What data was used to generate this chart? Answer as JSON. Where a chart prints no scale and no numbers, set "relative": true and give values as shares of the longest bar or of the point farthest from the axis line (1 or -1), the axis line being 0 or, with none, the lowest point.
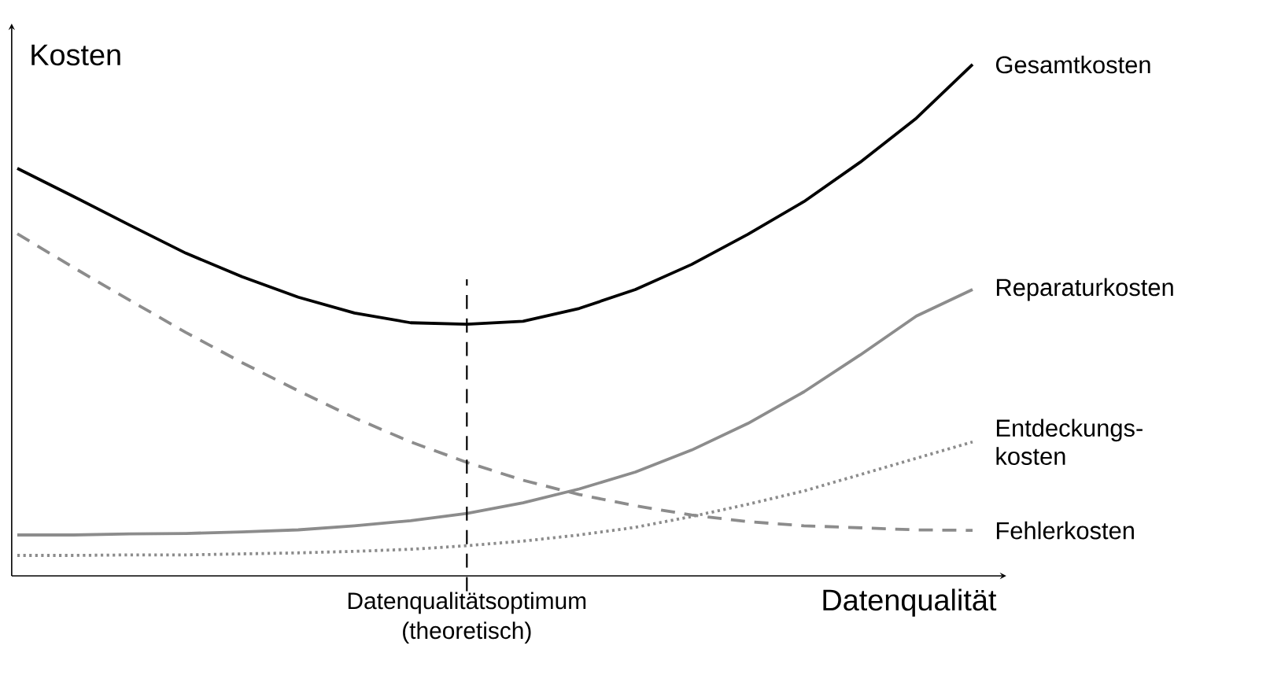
{
  "chart_data": {
    "type": "line",
    "relative": true,
    "xlabel": "Datenqualität",
    "ylabel": "Kosten",
    "categories": [
      null,
      null,
      null,
      null,
      null,
      null,
      null,
      null,
      null,
      null,
      null,
      null,
      null,
      null,
      null,
      null,
      null,
      null
    ],
    "series": [
      {
        "name": "Gesamtkosten",
        "color": "#000000",
        "line_style": "solid",
        "values": [
          0.797,
          0.742,
          0.686,
          0.631,
          0.585,
          0.545,
          0.514,
          0.495,
          0.492,
          0.498,
          0.523,
          0.56,
          0.609,
          0.668,
          0.732,
          0.809,
          0.895,
          1.0
        ]
      },
      {
        "name": "Reparaturkosten",
        "color": "#8c8c8c",
        "line_style": "solid",
        "values": [
          0.08,
          0.08,
          0.082,
          0.083,
          0.086,
          0.09,
          0.098,
          0.108,
          0.122,
          0.143,
          0.17,
          0.203,
          0.246,
          0.298,
          0.36,
          0.432,
          0.508,
          0.56
        ]
      },
      {
        "name": "Entdeckungs-kosten",
        "color": "#8c8c8c",
        "line_style": "dotted",
        "values": [
          0.04,
          0.04,
          0.041,
          0.041,
          0.043,
          0.045,
          0.048,
          0.052,
          0.059,
          0.068,
          0.08,
          0.095,
          0.116,
          0.14,
          0.166,
          0.198,
          0.23,
          0.262
        ]
      },
      {
        "name": "Fehlerkosten",
        "color": "#8c8c8c",
        "line_style": "dashed",
        "values": [
          0.669,
          0.603,
          0.539,
          0.476,
          0.417,
          0.362,
          0.309,
          0.262,
          0.222,
          0.187,
          0.159,
          0.137,
          0.119,
          0.106,
          0.098,
          0.094,
          0.09,
          0.089
        ]
      }
    ],
    "annotations": [
      "Datenqualitätsoptimum (theoretisch)"
    ],
    "marker": "none"
  }
}
